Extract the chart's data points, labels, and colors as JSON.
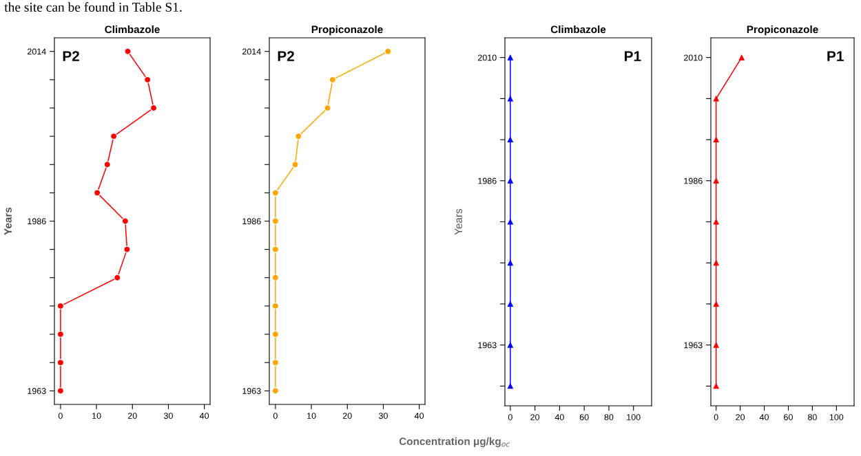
{
  "chart_data": [
    {
      "type": "line",
      "orientation": "horizontal",
      "title": "Climbazole",
      "ylabel": "Years",
      "marker": "circle",
      "categories": [
        "2014",
        null,
        null,
        null,
        null,
        null,
        "1986",
        null,
        null,
        null,
        null,
        null,
        "1963"
      ],
      "xlim": [
        -1.7,
        41.6
      ],
      "xticks": [
        0,
        10,
        20,
        30,
        40
      ],
      "series": [
        {
          "color": "#ff0000",
          "values": [
            18.7,
            24.2,
            25.9,
            14.8,
            13.0,
            10.2,
            18.0,
            18.5,
            15.8,
            0,
            0,
            0,
            0
          ]
        }
      ],
      "annotations": [
        "P2",
        "the site can be found in Table S1."
      ]
    },
    {
      "type": "line",
      "orientation": "horizontal",
      "title": "Propiconazole",
      "xlabel": "Concentration μg/kg$_{oc}$",
      "marker": "circle",
      "categories": [
        "2014",
        null,
        null,
        null,
        null,
        null,
        "1986",
        null,
        null,
        null,
        null,
        null,
        "1963"
      ],
      "xlim": [
        -1.7,
        41.6
      ],
      "xticks": [
        0,
        10,
        20,
        30,
        40
      ],
      "series": [
        {
          "color": "#ffa500",
          "values": [
            31.3,
            15.9,
            14.5,
            6.4,
            5.5,
            0,
            0,
            0,
            0,
            0,
            0,
            0,
            0
          ]
        }
      ],
      "annotations": [
        "P2"
      ]
    },
    {
      "type": "line",
      "orientation": "horizontal",
      "title": "Climbazole",
      "ylabel": "Years",
      "marker": "triangle",
      "categories": [
        "2010",
        null,
        null,
        "1986",
        null,
        null,
        null,
        "1963",
        null
      ],
      "xlim": [
        -4.4,
        114.7
      ],
      "xticks": [
        0,
        20,
        40,
        60,
        80,
        100
      ],
      "series": [
        {
          "color": "#0000ff",
          "values": [
            0,
            0,
            0,
            0,
            0,
            0,
            0,
            0,
            0
          ]
        }
      ],
      "annotations": [
        "P1"
      ]
    },
    {
      "type": "line",
      "orientation": "horizontal",
      "title": "Propiconazole",
      "marker": "triangle",
      "categories": [
        "2010",
        null,
        null,
        "1986",
        null,
        null,
        null,
        "1963",
        null
      ],
      "xlim": [
        -4.4,
        114.7
      ],
      "xticks": [
        0,
        20,
        40,
        60,
        80,
        100
      ],
      "series": [
        {
          "color": "#ff0000",
          "values": [
            21.2,
            0,
            0,
            0,
            0,
            0,
            0,
            0,
            0
          ]
        }
      ],
      "annotations": [
        "P1"
      ]
    }
  ]
}
